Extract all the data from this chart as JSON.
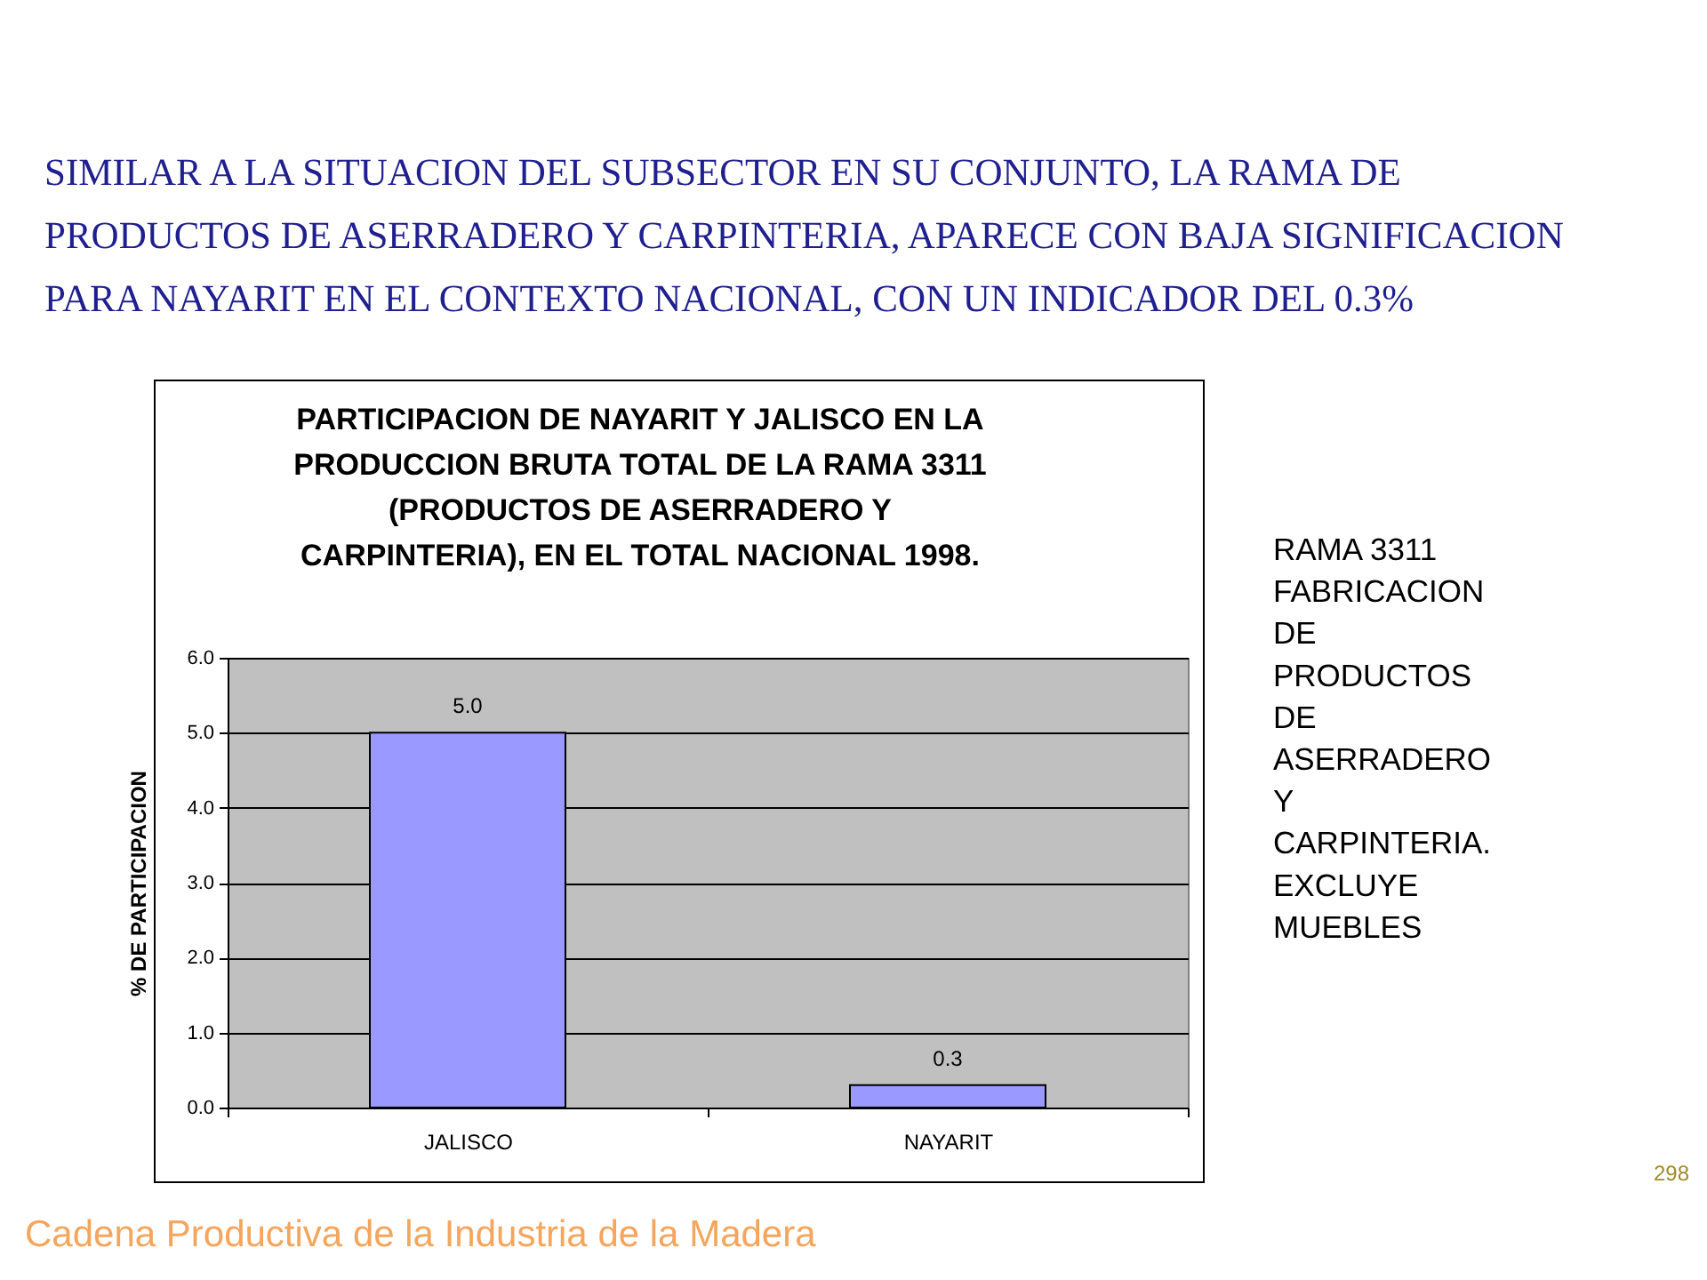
{
  "chart_data": {
    "type": "bar",
    "title": "PARTICIPACION DE NAYARIT Y JALISCO EN LA PRODUCCION BRUTA TOTAL DE LA RAMA 3311 (PRODUCTOS DE ASERRADERO Y CARPINTERIA), EN EL TOTAL NACIONAL 1998.",
    "ylabel": "% DE PARTICIPACION",
    "categories": [
      "JALISCO",
      "NAYARIT"
    ],
    "values": [
      5.0,
      0.3
    ],
    "value_labels": [
      "5.0",
      "0.3"
    ],
    "color": "#9999ff",
    "ylim": [
      0,
      6
    ],
    "yticks": [
      {
        "value": 0,
        "label": "0.0"
      },
      {
        "value": 1,
        "label": "1.0"
      },
      {
        "value": 2,
        "label": "2.0"
      },
      {
        "value": 3,
        "label": "3.0"
      },
      {
        "value": 4,
        "label": "4.0"
      },
      {
        "value": 5,
        "label": "5.0"
      },
      {
        "value": 6,
        "label": "6.0"
      }
    ],
    "grid": "y",
    "annotations": [
      "SIMILAR A LA SITUACION DEL SUBSECTOR EN SU CONJUNTO, LA RAMA DE PRODUCTOS DE ASERRADERO Y CARPINTERIA, APARECE CON BAJA SIGNIFICACION PARA NAYARIT EN EL CONTEXTO NACIONAL, CON UN INDICADOR DEL 0.3%",
      "RAMA 3311 FABRICACION DE PRODUCTOS DE ASERRADERO Y CARPINTERIA. EXCLUYE MUEBLES",
      "298",
      "Cadena Productiva de la Industria de la Madera"
    ]
  }
}
